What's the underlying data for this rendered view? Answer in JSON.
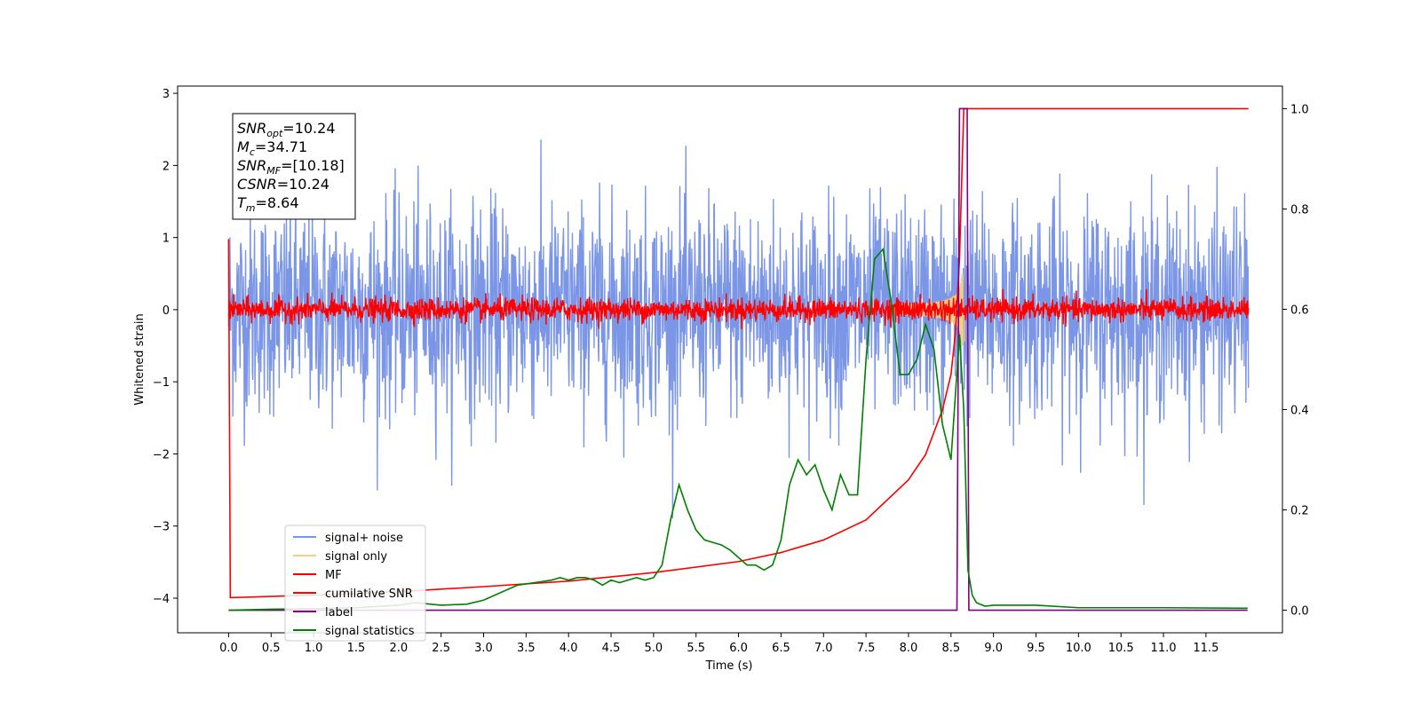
{
  "chart_data": {
    "type": "line",
    "title": "",
    "xlabel": "Time (s)",
    "ylabel": "Whitened strain",
    "xlim": [
      -0.6,
      12.4
    ],
    "ylim": [
      -4.48,
      3.1
    ],
    "y2lim": [
      -0.045,
      1.045
    ],
    "x_ticks": [
      "0.0",
      "0.5",
      "1.0",
      "1.5",
      "2.0",
      "2.5",
      "3.0",
      "3.5",
      "4.0",
      "4.5",
      "5.0",
      "5.5",
      "6.0",
      "6.5",
      "7.0",
      "7.5",
      "8.0",
      "8.5",
      "9.0",
      "9.5",
      "10.0",
      "10.5",
      "11.0",
      "11.5"
    ],
    "y_ticks": [
      "3",
      "2",
      "1",
      "0",
      "−1",
      "−2",
      "−3",
      "−4"
    ],
    "y2_ticks": [
      "1.0",
      "0.8",
      "0.6",
      "0.4",
      "0.2",
      "0.0"
    ],
    "annotation": {
      "lines": [
        {
          "base": "SNR",
          "sub": "opt",
          "value": "=10.24"
        },
        {
          "base": "M",
          "sub": "c",
          "value": "=34.71"
        },
        {
          "base": "SNR",
          "sub": "MF",
          "value": "=[10.18]"
        },
        {
          "base": "CSNR",
          "sub": "",
          "value": "=10.24"
        },
        {
          "base": "T",
          "sub": "m",
          "value": "=8.64"
        }
      ]
    },
    "legend_position": "lower-left",
    "series": [
      {
        "name": "signal+ noise",
        "color": "#7b96e6",
        "axis": "left",
        "kind": "noise",
        "sigma": 0.72
      },
      {
        "name": "signal only",
        "color": "#f6cf84",
        "axis": "left",
        "kind": "chirp",
        "t_merge": 8.64,
        "peak": 0.5
      },
      {
        "name": "MF",
        "color": "#ff0000",
        "axis": "left",
        "kind": "noise",
        "sigma": 0.08
      },
      {
        "name": "cumilative SNR",
        "color": "#ff0000",
        "axis": "right",
        "x": [
          0.0,
          0.02,
          1.0,
          2.0,
          3.0,
          4.0,
          5.0,
          6.0,
          6.5,
          7.0,
          7.5,
          8.0,
          8.2,
          8.4,
          8.5,
          8.55,
          8.6,
          8.63,
          8.65,
          8.7,
          12.0
        ],
        "values": [
          0.74,
          0.025,
          0.03,
          0.037,
          0.047,
          0.058,
          0.075,
          0.097,
          0.115,
          0.14,
          0.18,
          0.26,
          0.31,
          0.4,
          0.47,
          0.55,
          0.7,
          0.88,
          1.0,
          1.0,
          1.0
        ]
      },
      {
        "name": "label",
        "color": "#800080",
        "axis": "right",
        "x": [
          0.0,
          8.57,
          8.6,
          8.69,
          8.71,
          11.99
        ],
        "values": [
          0.0,
          0.0,
          1.0,
          1.0,
          0.0,
          0.0
        ]
      },
      {
        "name": "signal statistics",
        "color": "#008000",
        "axis": "right",
        "x": [
          0.0,
          0.5,
          1.0,
          1.5,
          2.0,
          2.2,
          2.5,
          2.8,
          3.0,
          3.2,
          3.4,
          3.6,
          3.8,
          3.9,
          4.0,
          4.1,
          4.2,
          4.3,
          4.4,
          4.5,
          4.6,
          4.7,
          4.8,
          4.9,
          5.0,
          5.1,
          5.2,
          5.3,
          5.4,
          5.5,
          5.6,
          5.7,
          5.8,
          5.9,
          6.0,
          6.1,
          6.2,
          6.3,
          6.4,
          6.5,
          6.6,
          6.7,
          6.8,
          6.9,
          7.0,
          7.1,
          7.2,
          7.3,
          7.4,
          7.5,
          7.6,
          7.7,
          7.8,
          7.9,
          8.0,
          8.1,
          8.2,
          8.3,
          8.4,
          8.5,
          8.6,
          8.65,
          8.7,
          8.75,
          8.8,
          8.9,
          9.0,
          9.5,
          10.0,
          11.0,
          11.99
        ],
        "values": [
          0.0,
          0.002,
          0.003,
          0.005,
          0.01,
          0.015,
          0.01,
          0.012,
          0.02,
          0.035,
          0.05,
          0.055,
          0.06,
          0.065,
          0.06,
          0.065,
          0.065,
          0.06,
          0.05,
          0.06,
          0.055,
          0.06,
          0.065,
          0.06,
          0.065,
          0.09,
          0.18,
          0.25,
          0.2,
          0.16,
          0.14,
          0.135,
          0.13,
          0.12,
          0.105,
          0.09,
          0.09,
          0.08,
          0.09,
          0.14,
          0.25,
          0.3,
          0.27,
          0.29,
          0.24,
          0.2,
          0.27,
          0.23,
          0.23,
          0.5,
          0.7,
          0.72,
          0.61,
          0.47,
          0.47,
          0.5,
          0.57,
          0.52,
          0.37,
          0.3,
          0.55,
          0.4,
          0.08,
          0.03,
          0.015,
          0.008,
          0.01,
          0.01,
          0.005,
          0.005,
          0.004
        ]
      }
    ]
  }
}
